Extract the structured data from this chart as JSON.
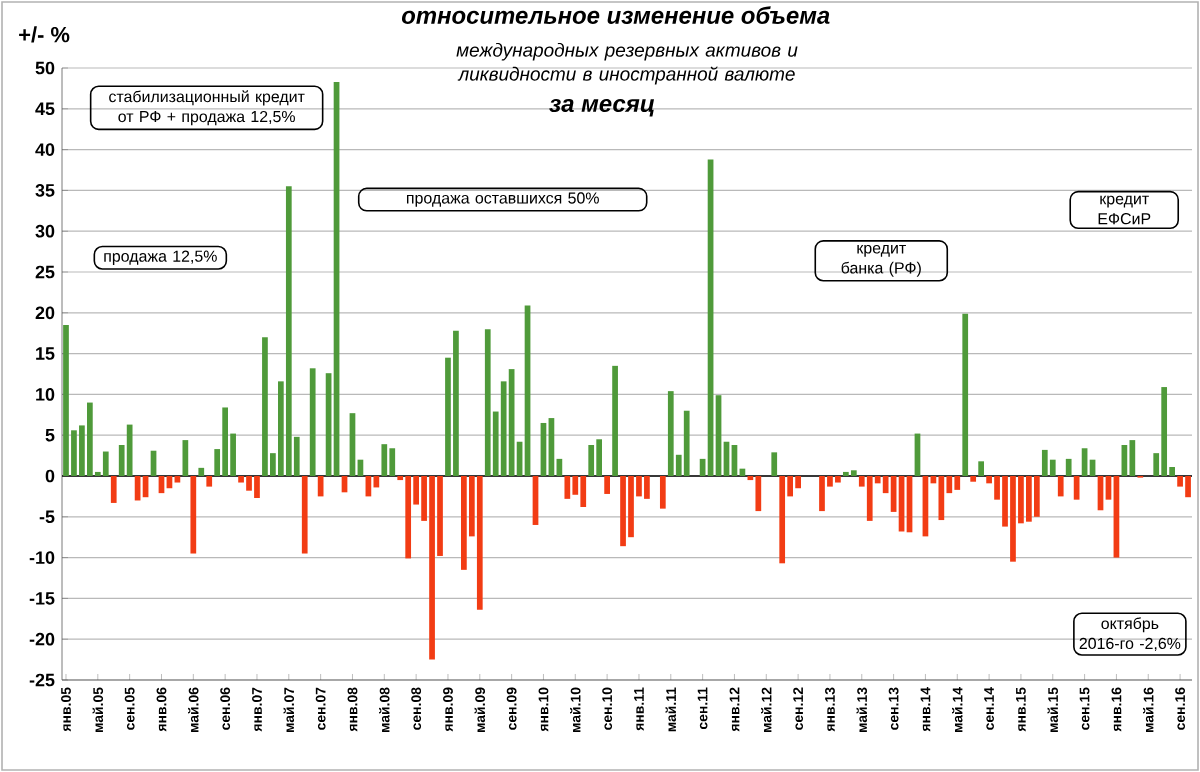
{
  "chart_data": {
    "type": "bar",
    "title": "относительное изменение объема",
    "subtitle": "международных резервных активов и ликвидности в иностранной валюте",
    "ylabel": "+/- %",
    "categories": [
      "янв.05",
      null,
      null,
      null,
      "май.05",
      null,
      null,
      null,
      "сен.05",
      null,
      null,
      null,
      "янв.06",
      null,
      null,
      null,
      "май.06",
      null,
      null,
      null,
      "сен.06",
      null,
      null,
      null,
      "янв.07",
      null,
      null,
      null,
      "май.07",
      null,
      null,
      null,
      "сен.07",
      null,
      null,
      null,
      "янв.08",
      null,
      null,
      null,
      "май.08",
      null,
      null,
      null,
      "сен.08",
      null,
      null,
      null,
      "янв.09",
      null,
      null,
      null,
      "май.09",
      null,
      null,
      null,
      "сен.09",
      null,
      null,
      null,
      "янв.10",
      null,
      null,
      null,
      "май.10",
      null,
      null,
      null,
      "сен.10",
      null,
      null,
      null,
      "янв.11",
      null,
      null,
      null,
      "май.11",
      null,
      null,
      null,
      "сен.11",
      null,
      null,
      null,
      "янв.12",
      null,
      null,
      null,
      "май.12",
      null,
      null,
      null,
      "сен.12",
      null,
      null,
      null,
      "янв.13",
      null,
      null,
      null,
      "май.13",
      null,
      null,
      null,
      "сен.13",
      null,
      null,
      null,
      "янв.14",
      null,
      null,
      null,
      "май.14",
      null,
      null,
      null,
      "сен.14",
      null,
      null,
      null,
      "янв.15",
      null,
      null,
      null,
      "май.15",
      null,
      null,
      null,
      "сен.15",
      null,
      null,
      null,
      "янв.16",
      null,
      null,
      null,
      "май.16",
      null,
      null,
      null,
      "сен.16",
      null
    ],
    "values": [
      18.5,
      5.6,
      6.2,
      9.0,
      0.5,
      3.0,
      -3.3,
      3.8,
      6.3,
      -3.0,
      -2.6,
      3.1,
      -2.1,
      -1.5,
      -0.8,
      4.4,
      -9.5,
      1.0,
      -1.3,
      3.3,
      8.4,
      5.2,
      -0.8,
      -1.8,
      -2.7,
      17.0,
      2.8,
      11.6,
      35.5,
      4.8,
      -9.5,
      13.2,
      -2.5,
      12.6,
      48.3,
      -2.0,
      7.7,
      2.0,
      -2.5,
      -1.4,
      3.9,
      3.4,
      -0.5,
      -10.1,
      -3.5,
      -5.5,
      -22.5,
      -9.8,
      14.5,
      17.8,
      -11.5,
      -7.4,
      -16.4,
      18.0,
      7.9,
      11.6,
      13.1,
      4.2,
      20.9,
      -6.0,
      6.5,
      7.1,
      2.1,
      -2.8,
      -2.3,
      -3.8,
      3.8,
      4.5,
      -2.2,
      13.5,
      -8.6,
      -7.5,
      -2.5,
      -2.8,
      null,
      -4.0,
      10.4,
      2.6,
      8.0,
      null,
      2.1,
      38.8,
      9.9,
      4.2,
      3.8,
      0.9,
      -0.5,
      -4.3,
      null,
      2.9,
      -10.7,
      -2.5,
      -1.5,
      null,
      null,
      -4.3,
      -1.3,
      -0.8,
      0.5,
      0.7,
      -1.3,
      -5.5,
      -0.9,
      -2.1,
      -4.4,
      -6.8,
      -6.9,
      5.2,
      -7.4,
      -0.9,
      -5.4,
      -2.1,
      -1.7,
      19.9,
      -0.7,
      1.8,
      -0.9,
      -2.9,
      -6.2,
      -10.5,
      -5.8,
      -5.6,
      -5.0,
      3.2,
      2.0,
      -2.5,
      2.1,
      -2.9,
      3.4,
      2.0,
      -4.2,
      -2.9,
      -10.0,
      3.8,
      4.4,
      -0.2,
      null,
      2.8,
      10.9,
      1.1,
      -1.3,
      -2.6
    ],
    "colors": [
      "#4f9a3a",
      "#4f9a3a",
      "#4f9a3a",
      "#4f9a3a",
      "#4f9a3a",
      "#4f9a3a",
      "#f23c14",
      "#4f9a3a",
      "#4f9a3a",
      "#f23c14",
      "#f23c14",
      "#4f9a3a",
      "#f23c14",
      "#f23c14",
      "#f23c14",
      "#4f9a3a",
      "#f23c14",
      "#4f9a3a",
      "#f23c14",
      "#4f9a3a",
      "#4f9a3a",
      "#4f9a3a",
      "#f23c14",
      "#f23c14",
      "#f23c14",
      "#4f9a3a",
      "#4f9a3a",
      "#4f9a3a",
      "#4f9a3a",
      "#4f9a3a",
      "#f23c14",
      "#4f9a3a",
      "#f23c14",
      "#4f9a3a",
      "#4f9a3a",
      "#f23c14",
      "#4f9a3a",
      "#4f9a3a",
      "#f23c14",
      "#f23c14",
      "#4f9a3a",
      "#4f9a3a",
      "#f23c14",
      "#f23c14",
      "#f23c14",
      "#f23c14",
      "#f23c14",
      "#f23c14",
      "#4f9a3a",
      "#4f9a3a",
      "#f23c14",
      "#f23c14",
      "#f23c14",
      "#4f9a3a",
      "#4f9a3a",
      "#4f9a3a",
      "#4f9a3a",
      "#4f9a3a",
      "#4f9a3a",
      "#f23c14",
      "#4f9a3a",
      "#4f9a3a",
      "#4f9a3a",
      "#f23c14",
      "#f23c14",
      "#f23c14",
      "#4f9a3a",
      "#4f9a3a",
      "#f23c14",
      "#4f9a3a",
      "#f23c14",
      "#f23c14",
      "#f23c14",
      "#f23c14",
      "#4f9a3a",
      "#f23c14",
      "#4f9a3a",
      "#4f9a3a",
      "#4f9a3a",
      "#4f9a3a",
      "#4f9a3a",
      "#4f9a3a",
      "#4f9a3a",
      "#4f9a3a",
      "#4f9a3a",
      "#4f9a3a",
      "#f23c14",
      "#f23c14",
      "#4f9a3a",
      "#4f9a3a",
      "#f23c14",
      "#f23c14",
      "#f23c14",
      "#4f9a3a",
      "#4f9a3a",
      "#f23c14",
      "#f23c14",
      "#f23c14",
      "#4f9a3a",
      "#4f9a3a",
      "#f23c14",
      "#f23c14",
      "#f23c14",
      "#f23c14",
      "#f23c14",
      "#f23c14",
      "#f23c14",
      "#4f9a3a",
      "#f23c14",
      "#f23c14",
      "#f23c14",
      "#f23c14",
      "#f23c14",
      "#4f9a3a",
      "#f23c14",
      "#4f9a3a",
      "#f23c14",
      "#f23c14",
      "#f23c14",
      "#f23c14",
      "#f23c14",
      "#f23c14",
      "#f23c14",
      "#4f9a3a",
      "#4f9a3a",
      "#f23c14",
      "#4f9a3a",
      "#f23c14",
      "#4f9a3a",
      "#4f9a3a",
      "#f23c14",
      "#f23c14",
      "#f23c14",
      "#4f9a3a",
      "#4f9a3a",
      "#f23c14",
      "#4f9a3a",
      "#4f9a3a",
      "#4f9a3a",
      "#4f9a3a",
      "#f23c14",
      "#f23c14"
    ],
    "ylim": [
      -25,
      50
    ],
    "yticks": [
      -25,
      -20,
      -15,
      -10,
      -5,
      0,
      5,
      10,
      15,
      20,
      25,
      30,
      35,
      40,
      45,
      50
    ],
    "grid": "y",
    "annotations": [
      "стабилизационный кредит от РФ + продажа 12,5%",
      "продажа 12,5%",
      "продажа оставшихся 50%",
      "кредит банка (РФ)",
      "кредит ЕФСиР",
      "октябрь 2016-го -2,6%",
      "за месяц"
    ]
  }
}
